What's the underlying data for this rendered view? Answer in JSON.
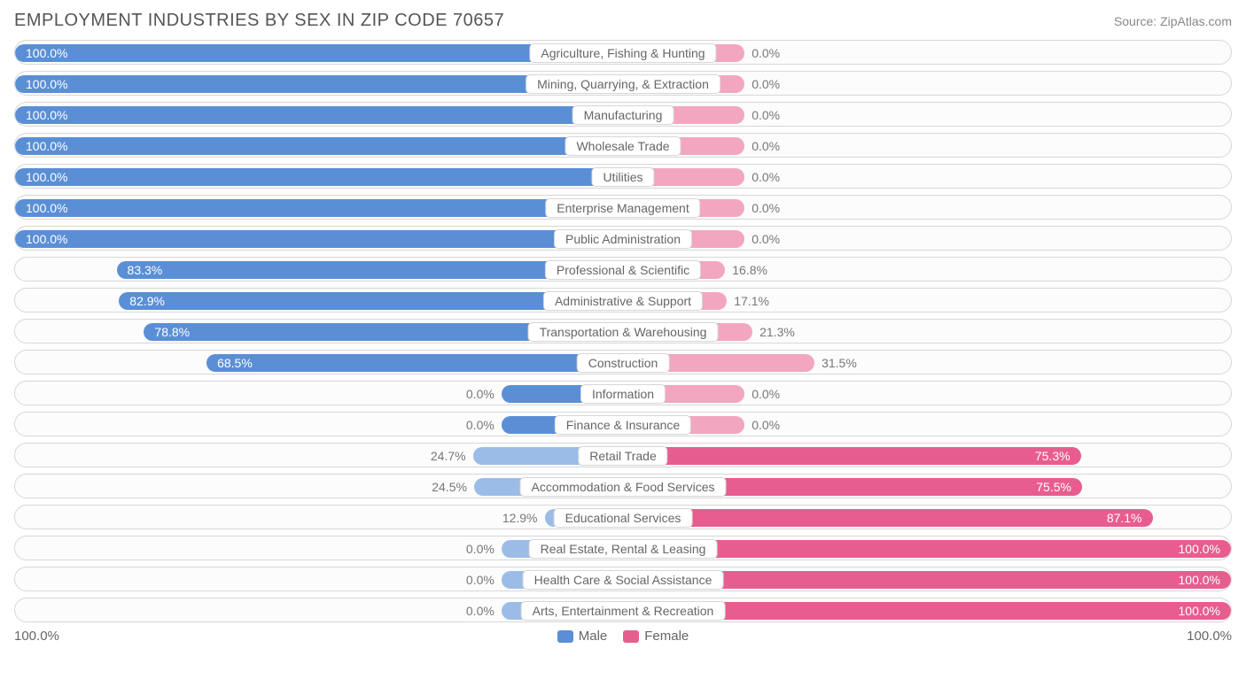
{
  "title": "EMPLOYMENT INDUSTRIES BY SEX IN ZIP CODE 70657",
  "source": "Source: ZipAtlas.com",
  "chart": {
    "type": "diverging-bar",
    "male_color_strong": "#5a8fd6",
    "male_color_weak": "#9cbce8",
    "female_color_strong": "#e85d8f",
    "female_color_weak": "#f3a6c0",
    "row_bg": "#fcfcfc",
    "row_border": "#d7d7d7",
    "label_text_color": "#666666",
    "pct_text_color": "#777777",
    "stub_pct": 20,
    "axis_left_label": "100.0%",
    "axis_right_label": "100.0%",
    "legend": {
      "male": {
        "label": "Male",
        "color": "#5a8fd6"
      },
      "female": {
        "label": "Female",
        "color": "#e85d8f"
      }
    },
    "rows": [
      {
        "category": "Agriculture, Fishing & Hunting",
        "male_pct": 100.0,
        "female_pct": 0.0,
        "male_label": "100.0%",
        "female_label": "0.0%"
      },
      {
        "category": "Mining, Quarrying, & Extraction",
        "male_pct": 100.0,
        "female_pct": 0.0,
        "male_label": "100.0%",
        "female_label": "0.0%"
      },
      {
        "category": "Manufacturing",
        "male_pct": 100.0,
        "female_pct": 0.0,
        "male_label": "100.0%",
        "female_label": "0.0%"
      },
      {
        "category": "Wholesale Trade",
        "male_pct": 100.0,
        "female_pct": 0.0,
        "male_label": "100.0%",
        "female_label": "0.0%"
      },
      {
        "category": "Utilities",
        "male_pct": 100.0,
        "female_pct": 0.0,
        "male_label": "100.0%",
        "female_label": "0.0%"
      },
      {
        "category": "Enterprise Management",
        "male_pct": 100.0,
        "female_pct": 0.0,
        "male_label": "100.0%",
        "female_label": "0.0%"
      },
      {
        "category": "Public Administration",
        "male_pct": 100.0,
        "female_pct": 0.0,
        "male_label": "100.0%",
        "female_label": "0.0%"
      },
      {
        "category": "Professional & Scientific",
        "male_pct": 83.3,
        "female_pct": 16.8,
        "male_label": "83.3%",
        "female_label": "16.8%"
      },
      {
        "category": "Administrative & Support",
        "male_pct": 82.9,
        "female_pct": 17.1,
        "male_label": "82.9%",
        "female_label": "17.1%"
      },
      {
        "category": "Transportation & Warehousing",
        "male_pct": 78.8,
        "female_pct": 21.3,
        "male_label": "78.8%",
        "female_label": "21.3%"
      },
      {
        "category": "Construction",
        "male_pct": 68.5,
        "female_pct": 31.5,
        "male_label": "68.5%",
        "female_label": "31.5%"
      },
      {
        "category": "Information",
        "male_pct": 0.0,
        "female_pct": 0.0,
        "male_label": "0.0%",
        "female_label": "0.0%"
      },
      {
        "category": "Finance & Insurance",
        "male_pct": 0.0,
        "female_pct": 0.0,
        "male_label": "0.0%",
        "female_label": "0.0%"
      },
      {
        "category": "Retail Trade",
        "male_pct": 24.7,
        "female_pct": 75.3,
        "male_label": "24.7%",
        "female_label": "75.3%"
      },
      {
        "category": "Accommodation & Food Services",
        "male_pct": 24.5,
        "female_pct": 75.5,
        "male_label": "24.5%",
        "female_label": "75.5%"
      },
      {
        "category": "Educational Services",
        "male_pct": 12.9,
        "female_pct": 87.1,
        "male_label": "12.9%",
        "female_label": "87.1%"
      },
      {
        "category": "Real Estate, Rental & Leasing",
        "male_pct": 0.0,
        "female_pct": 100.0,
        "male_label": "0.0%",
        "female_label": "100.0%"
      },
      {
        "category": "Health Care & Social Assistance",
        "male_pct": 0.0,
        "female_pct": 100.0,
        "male_label": "0.0%",
        "female_label": "100.0%"
      },
      {
        "category": "Arts, Entertainment & Recreation",
        "male_pct": 0.0,
        "female_pct": 100.0,
        "male_label": "0.0%",
        "female_label": "100.0%"
      }
    ]
  }
}
